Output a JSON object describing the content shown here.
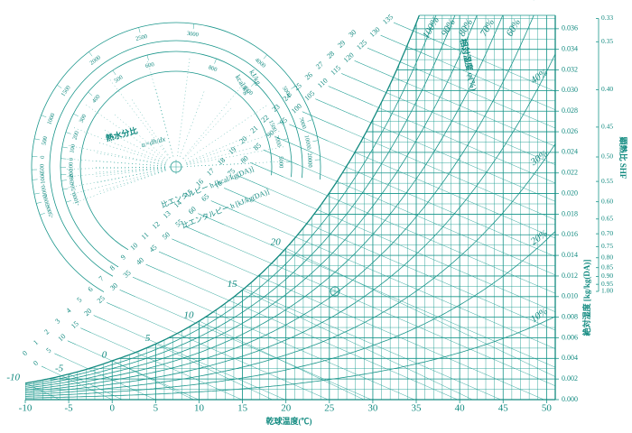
{
  "chart_data": {
    "type": "psychrometric",
    "xlabel": "乾球温度(℃)",
    "ylabel": "絶対湿度 [kg/kg(DA)]",
    "color": "#1a9a8c",
    "grid": true,
    "xlim": [
      -10,
      51
    ],
    "ylim": [
      0,
      0.0373
    ],
    "xticks": [
      -10,
      -5,
      0,
      5,
      10,
      15,
      20,
      25,
      30,
      35,
      40,
      45,
      50
    ],
    "yticks": [
      {
        "value": 0,
        "label": "0.000"
      },
      0.002,
      0.004,
      0.006,
      0.008,
      {
        "value": 0.01,
        "label": "0.010"
      },
      0.012,
      0.014,
      0.016,
      0.018,
      {
        "value": 0.02,
        "label": "0.020"
      },
      0.022,
      0.024,
      0.026,
      0.028,
      {
        "value": 0.03,
        "label": "0.030"
      },
      0.032,
      0.034,
      0.036
    ],
    "relative_humidity": {
      "name": "相対湿度 φ(%)",
      "values": [
        10,
        20,
        30,
        40,
        50,
        60,
        70,
        80,
        90,
        100
      ],
      "value_labels": [
        "10%",
        "20%",
        "30%",
        "40%",
        "50%",
        "60%",
        "70%",
        "80%",
        "90%",
        "100%"
      ]
    },
    "wet_bulb": {
      "values": [
        -10,
        -5,
        0,
        5,
        10,
        15,
        20
      ]
    },
    "enthalpy_kj": {
      "name": "比エンタルピー h [kJ/kg(DA)]",
      "values": [
        0,
        5,
        10,
        15,
        20,
        25,
        30,
        35,
        40,
        45,
        50,
        55,
        60,
        65,
        70,
        75,
        80,
        85,
        90,
        95,
        100,
        105,
        110,
        115,
        120,
        125,
        130,
        135
      ]
    },
    "enthalpy_kcal": {
      "name": "比エンタルピー h [kcal/kg(DA)]",
      "values": [
        0,
        1,
        2,
        3,
        4,
        5,
        6,
        7,
        8,
        9,
        10,
        11,
        12,
        13,
        14,
        15,
        16,
        17,
        18,
        19,
        20,
        21,
        22,
        23,
        24,
        25,
        26,
        27,
        28,
        29,
        30
      ]
    },
    "shf": {
      "name": "顕熱比 SHF",
      "ticks": [
        0.33,
        0.35,
        {
          "value": 0.4,
          "label": "0.40"
        },
        0.45,
        {
          "value": 0.5,
          "label": "0.50"
        },
        0.55,
        {
          "value": 0.6,
          "label": "0.60"
        },
        0.65,
        {
          "value": 0.7,
          "label": "0.70"
        },
        0.75,
        {
          "value": 0.8,
          "label": "0.80"
        },
        0.85,
        {
          "value": 0.9,
          "label": "0.90"
        },
        0.95,
        {
          "value": 1,
          "label": "1.00"
        }
      ]
    },
    "moisture_ratio": {
      "name": "熱水分比",
      "formula": "u=dh/dx",
      "unit_kj": "kJ/kg",
      "unit_kcal": "kcal/kg",
      "kj_values": [
        -5000,
        -3000,
        -2000,
        -1000,
        -500,
        0,
        500,
        1000,
        1500,
        2000,
        2500,
        3000,
        4000,
        5000,
        7000,
        10000,
        20000
      ],
      "kcal_values": [
        -1000,
        -500,
        -300,
        -200,
        -100,
        0,
        100,
        200,
        300,
        400,
        500,
        600,
        800,
        1000,
        1500,
        2000,
        5000
      ]
    }
  }
}
